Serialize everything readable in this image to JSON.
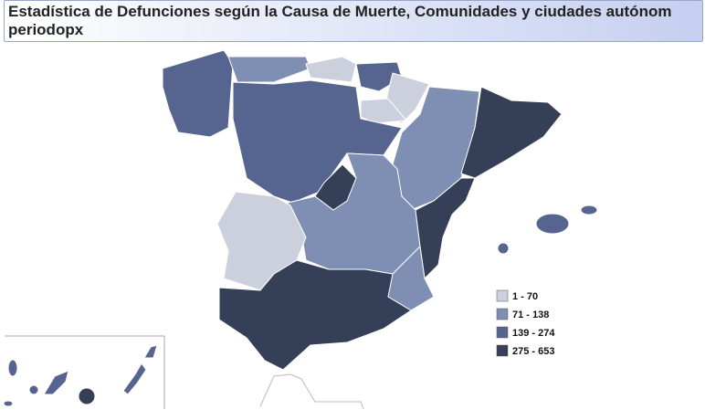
{
  "header": {
    "title_lines": [
      "Estadística de Defunciones según la Causa de Muerte, Comunidades y ciudades autónom",
      "periodopx"
    ]
  },
  "legend": {
    "items": [
      {
        "label": "1 - 70",
        "color": "#cbd0dc"
      },
      {
        "label": "71 - 138",
        "color": "#7f8eb3"
      },
      {
        "label": "139 - 274",
        "color": "#56658f"
      },
      {
        "label": "275 - 653",
        "color": "#353f58"
      }
    ]
  }
}
